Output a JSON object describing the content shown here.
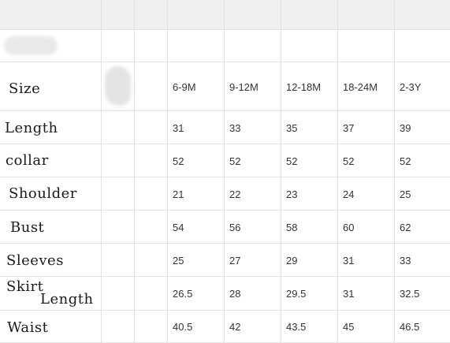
{
  "table": {
    "sizes": [
      "6-9M",
      "9-12M",
      "12-18M",
      "18-24M",
      "2-3Y"
    ],
    "header_label": "Size",
    "rows": [
      {
        "label": "Length",
        "values": [
          "31",
          "33",
          "35",
          "37",
          "39"
        ]
      },
      {
        "label": "collar",
        "values": [
          "52",
          "52",
          "52",
          "52",
          "52"
        ]
      },
      {
        "label": "Shoulder",
        "values": [
          "21",
          "22",
          "23",
          "24",
          "25"
        ]
      },
      {
        "label": "Bust",
        "values": [
          "54",
          "56",
          "58",
          "60",
          "62"
        ]
      },
      {
        "label": "Sleeves",
        "values": [
          "25",
          "27",
          "29",
          "31",
          "33"
        ]
      },
      {
        "label_line1": "Skirt",
        "label_line2": "Length",
        "values": [
          "26.5",
          "28",
          "29.5",
          "31",
          "32.5"
        ]
      },
      {
        "label": "Waist",
        "values": [
          "40.5",
          "42",
          "43.5",
          "45",
          "46.5"
        ]
      }
    ]
  }
}
